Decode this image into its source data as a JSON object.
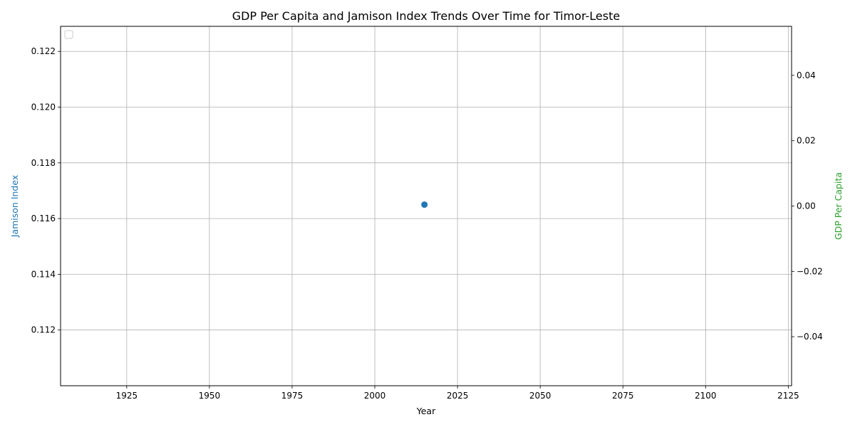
{
  "chart_data": {
    "type": "scatter",
    "title": "GDP Per Capita and Jamison Index Trends Over Time for Timor-Leste",
    "xlabel": "Year",
    "ylabel_left": "Jamison Index",
    "ylabel_right": "GDP Per Capita",
    "xlim": [
      1905,
      2126
    ],
    "ylim_left": [
      0.11,
      0.1229
    ],
    "ylim_right": [
      -0.055,
      0.055
    ],
    "x_ticks": [
      1925,
      1950,
      1975,
      2000,
      2025,
      2050,
      2075,
      2100,
      2125
    ],
    "x_tick_labels": [
      "1925",
      "1950",
      "1975",
      "2000",
      "2025",
      "2050",
      "2075",
      "2100",
      "2125"
    ],
    "y_left_ticks": [
      0.112,
      0.114,
      0.116,
      0.118,
      0.12,
      0.122
    ],
    "y_left_tick_labels": [
      "0.112",
      "0.114",
      "0.116",
      "0.118",
      "0.120",
      "0.122"
    ],
    "y_right_ticks": [
      -0.04,
      -0.02,
      0.0,
      0.02,
      0.04
    ],
    "y_right_tick_labels": [
      "−0.04",
      "−0.02",
      "0.00",
      "0.02",
      "0.04"
    ],
    "grid": true,
    "legend_position": "top-left",
    "series": [
      {
        "name": "Jamison Index",
        "axis": "left",
        "color": "#1f77b4",
        "points": [
          {
            "x": 2015,
            "y": 0.1165
          }
        ]
      },
      {
        "name": "GDP Per Capita",
        "axis": "right",
        "color": "#2ca02c",
        "points": []
      }
    ]
  }
}
